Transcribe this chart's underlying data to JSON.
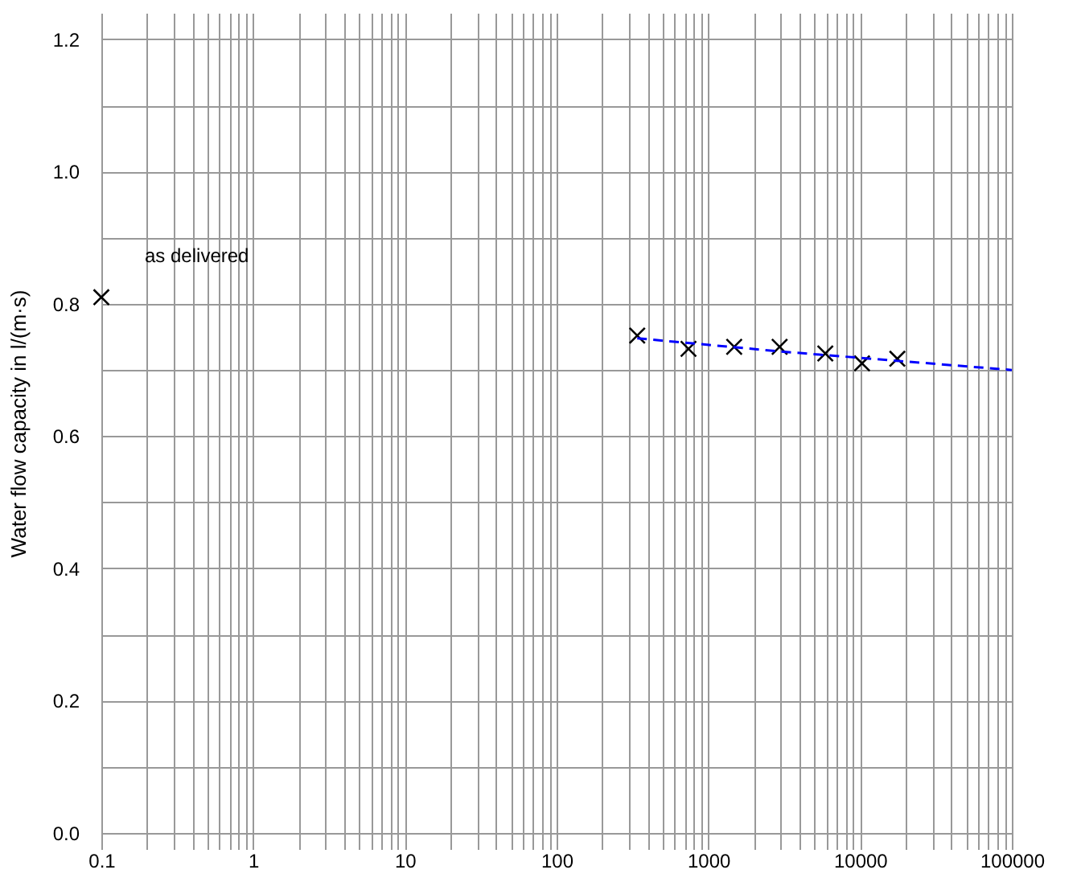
{
  "chart_data": {
    "type": "scatter",
    "ylabel": "Water flow capacity  in l/(m·s)",
    "log": "x",
    "grid": true,
    "xlim": [
      0.1,
      100000
    ],
    "ylim": [
      0,
      1.24
    ],
    "xticks": [
      {
        "value": 0.1,
        "label": "0.1"
      },
      {
        "value": 0.2,
        "label": null
      },
      {
        "value": 0.3,
        "label": null
      },
      {
        "value": 0.4,
        "label": null
      },
      {
        "value": 0.5,
        "label": null
      },
      {
        "value": 0.6,
        "label": null
      },
      {
        "value": 0.7,
        "label": null
      },
      {
        "value": 0.8,
        "label": null
      },
      {
        "value": 0.9,
        "label": null
      },
      1,
      {
        "value": 2,
        "label": null
      },
      {
        "value": 3,
        "label": null
      },
      {
        "value": 4,
        "label": null
      },
      {
        "value": 5,
        "label": null
      },
      {
        "value": 6,
        "label": null
      },
      {
        "value": 7,
        "label": null
      },
      {
        "value": 8,
        "label": null
      },
      {
        "value": 9,
        "label": null
      },
      10,
      {
        "value": 20,
        "label": null
      },
      {
        "value": 30,
        "label": null
      },
      {
        "value": 40,
        "label": null
      },
      {
        "value": 50,
        "label": null
      },
      {
        "value": 60,
        "label": null
      },
      {
        "value": 70,
        "label": null
      },
      {
        "value": 80,
        "label": null
      },
      {
        "value": 90,
        "label": null
      },
      100,
      {
        "value": 200,
        "label": null
      },
      {
        "value": 300,
        "label": null
      },
      {
        "value": 400,
        "label": null
      },
      {
        "value": 500,
        "label": null
      },
      {
        "value": 600,
        "label": null
      },
      {
        "value": 700,
        "label": null
      },
      {
        "value": 800,
        "label": null
      },
      {
        "value": 900,
        "label": null
      },
      1000,
      {
        "value": 2000,
        "label": null
      },
      {
        "value": 3000,
        "label": null
      },
      {
        "value": 4000,
        "label": null
      },
      {
        "value": 5000,
        "label": null
      },
      {
        "value": 6000,
        "label": null
      },
      {
        "value": 7000,
        "label": null
      },
      {
        "value": 8000,
        "label": null
      },
      {
        "value": 9000,
        "label": null
      },
      10000,
      {
        "value": 20000,
        "label": null
      },
      {
        "value": 30000,
        "label": null
      },
      {
        "value": 40000,
        "label": null
      },
      {
        "value": 50000,
        "label": null
      },
      {
        "value": 60000,
        "label": null
      },
      {
        "value": 70000,
        "label": null
      },
      {
        "value": 80000,
        "label": null
      },
      {
        "value": 90000,
        "label": null
      },
      100000
    ],
    "yticks": [
      {
        "value": 0,
        "label": "0.0"
      },
      {
        "value": 0.1,
        "label": null
      },
      {
        "value": 0.2,
        "label": "0.2"
      },
      {
        "value": 0.3,
        "label": null
      },
      {
        "value": 0.4,
        "label": "0.4"
      },
      {
        "value": 0.5,
        "label": null
      },
      {
        "value": 0.6,
        "label": "0.6"
      },
      {
        "value": 0.7,
        "label": null
      },
      {
        "value": 0.8,
        "label": "0.8"
      },
      {
        "value": 0.9,
        "label": null
      },
      {
        "value": 1.0,
        "label": "1.0"
      },
      {
        "value": 1.1,
        "label": null
      },
      {
        "value": 1.2,
        "label": "1.2"
      }
    ],
    "series": [
      {
        "type": "scatter",
        "color": "#000000",
        "marker": "cross",
        "x": [
          0.1,
          340,
          740,
          1480,
          2950,
          5900,
          10300,
          17600
        ],
        "values": [
          0.81,
          0.752,
          0.732,
          0.735,
          0.735,
          0.725,
          0.71,
          0.717
        ]
      },
      {
        "type": "line",
        "color": "#0000ff",
        "line_style": "dashed",
        "marker": "none",
        "x": [
          340,
          3000,
          100000
        ],
        "values": [
          0.748,
          0.728,
          0.7
        ]
      }
    ],
    "annotations": [
      {
        "text": "as delivered",
        "x": 0.1,
        "y": 0.81
      }
    ]
  }
}
